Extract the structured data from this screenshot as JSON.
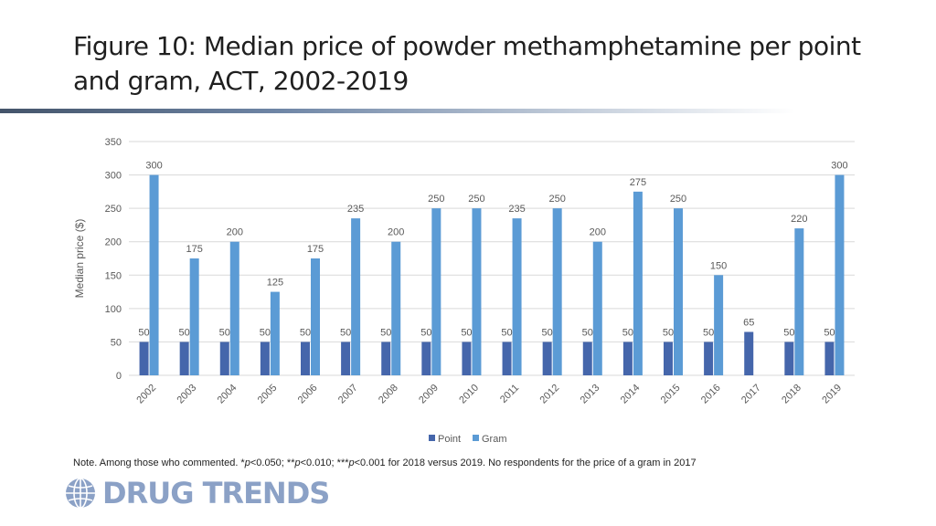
{
  "slide": {
    "title": "Figure 10: Median price of powder methamphetamine per point and gram, ACT, 2002-2019",
    "note_parts": {
      "a": "Note. Among those who commented. *",
      "b": "p",
      "c": "<0.050; **",
      "d": "p",
      "e": "<0.010; ***",
      "f": "p",
      "g": "<0.001 for 2018 versus 2019. No respondents for the price of a gram in 2017"
    },
    "logo": "DRUG TRENDS"
  },
  "colors": {
    "point": "#4566ab",
    "gram": "#5b9bd5",
    "grid": "#d9d9d9",
    "text": "#595959"
  },
  "chart_data": {
    "type": "bar",
    "title": "",
    "xlabel": "",
    "ylabel": "Median price ($)",
    "ylim": [
      0,
      350
    ],
    "yticks": [
      0,
      50,
      100,
      150,
      200,
      250,
      300,
      350
    ],
    "categories": [
      "2002",
      "2003",
      "2004",
      "2005",
      "2006",
      "2007",
      "2008",
      "2009",
      "2010",
      "2011",
      "2012",
      "2013",
      "2014",
      "2015",
      "2016",
      "2017",
      "2018",
      "2019"
    ],
    "series": [
      {
        "name": "Point",
        "values": [
          50,
          50,
          50,
          50,
          50,
          50,
          50,
          50,
          50,
          50,
          50,
          50,
          50,
          50,
          50,
          65,
          50,
          50
        ]
      },
      {
        "name": "Gram",
        "values": [
          300,
          175,
          200,
          125,
          175,
          235,
          200,
          250,
          250,
          235,
          250,
          200,
          275,
          250,
          150,
          null,
          220,
          300
        ]
      }
    ],
    "legend": "bottom-center"
  }
}
